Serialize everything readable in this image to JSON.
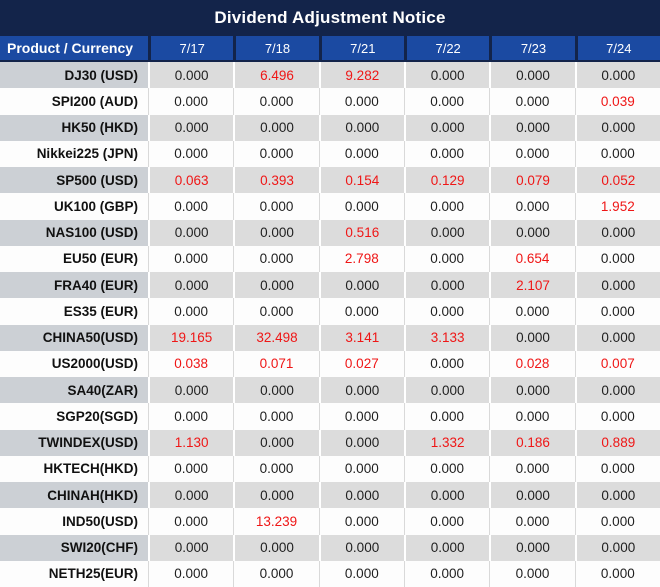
{
  "title": "Dividend Adjustment Notice",
  "colors": {
    "title_bar_bg": "#13244a",
    "header_bg": "#1b4aa2",
    "header_separator": "#13244a",
    "header_text": "#ffffff",
    "stripe_row_bg": "#dcdcdc",
    "stripe_product_bg": "#ccd0d5",
    "white_row_bg": "#fdfdfd",
    "grid_line": "#d9d9d9",
    "text_dark": "#1f1f1f",
    "highlight_red": "#ef1616"
  },
  "chart_data": {
    "type": "table",
    "title": "Dividend Adjustment Notice",
    "columns": [
      "Product / Currency",
      "7/17",
      "7/18",
      "7/21",
      "7/22",
      "7/23",
      "7/24"
    ],
    "zero_value": "0.000",
    "highlight_rule": "values other than 0.000 are shown in red",
    "striping": "odd data rows shaded grey, even rows white",
    "rows": [
      [
        "DJ30 (USD)",
        "0.000",
        "6.496",
        "9.282",
        "0.000",
        "0.000",
        "0.000"
      ],
      [
        "SPI200 (AUD)",
        "0.000",
        "0.000",
        "0.000",
        "0.000",
        "0.000",
        "0.039"
      ],
      [
        "HK50 (HKD)",
        "0.000",
        "0.000",
        "0.000",
        "0.000",
        "0.000",
        "0.000"
      ],
      [
        "Nikkei225 (JPN)",
        "0.000",
        "0.000",
        "0.000",
        "0.000",
        "0.000",
        "0.000"
      ],
      [
        "SP500 (USD)",
        "0.063",
        "0.393",
        "0.154",
        "0.129",
        "0.079",
        "0.052"
      ],
      [
        "UK100 (GBP)",
        "0.000",
        "0.000",
        "0.000",
        "0.000",
        "0.000",
        "1.952"
      ],
      [
        "NAS100 (USD)",
        "0.000",
        "0.000",
        "0.516",
        "0.000",
        "0.000",
        "0.000"
      ],
      [
        "EU50 (EUR)",
        "0.000",
        "0.000",
        "2.798",
        "0.000",
        "0.654",
        "0.000"
      ],
      [
        "FRA40 (EUR)",
        "0.000",
        "0.000",
        "0.000",
        "0.000",
        "2.107",
        "0.000"
      ],
      [
        "ES35 (EUR)",
        "0.000",
        "0.000",
        "0.000",
        "0.000",
        "0.000",
        "0.000"
      ],
      [
        "CHINA50(USD)",
        "19.165",
        "32.498",
        "3.141",
        "3.133",
        "0.000",
        "0.000"
      ],
      [
        "US2000(USD)",
        "0.038",
        "0.071",
        "0.027",
        "0.000",
        "0.028",
        "0.007"
      ],
      [
        "SA40(ZAR)",
        "0.000",
        "0.000",
        "0.000",
        "0.000",
        "0.000",
        "0.000"
      ],
      [
        "SGP20(SGD)",
        "0.000",
        "0.000",
        "0.000",
        "0.000",
        "0.000",
        "0.000"
      ],
      [
        "TWINDEX(USD)",
        "1.130",
        "0.000",
        "0.000",
        "1.332",
        "0.186",
        "0.889"
      ],
      [
        "HKTECH(HKD)",
        "0.000",
        "0.000",
        "0.000",
        "0.000",
        "0.000",
        "0.000"
      ],
      [
        "CHINAH(HKD)",
        "0.000",
        "0.000",
        "0.000",
        "0.000",
        "0.000",
        "0.000"
      ],
      [
        "IND50(USD)",
        "0.000",
        "13.239",
        "0.000",
        "0.000",
        "0.000",
        "0.000"
      ],
      [
        "SWI20(CHF)",
        "0.000",
        "0.000",
        "0.000",
        "0.000",
        "0.000",
        "0.000"
      ],
      [
        "NETH25(EUR)",
        "0.000",
        "0.000",
        "0.000",
        "0.000",
        "0.000",
        "0.000"
      ]
    ]
  }
}
